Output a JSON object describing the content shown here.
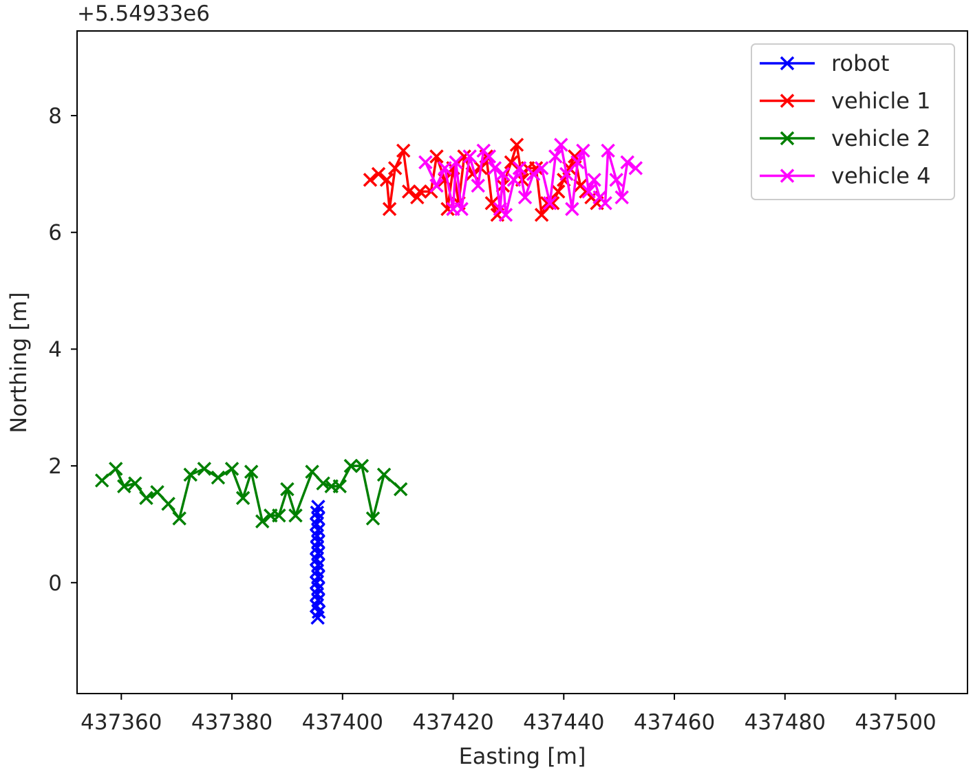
{
  "chart_data": {
    "type": "line",
    "xlabel": "Easting [m]",
    "ylabel": "Northing [m]",
    "y_offset_label": "+5.54933e6",
    "xlim": [
      437352,
      437513
    ],
    "ylim": [
      -1.9,
      9.45
    ],
    "xticks": [
      437360,
      437380,
      437400,
      437420,
      437440,
      437460,
      437480,
      437500
    ],
    "yticks": [
      0,
      2,
      4,
      6,
      8
    ],
    "grid": false,
    "legend_position": "top-right",
    "marker": "x",
    "series": [
      {
        "name": "robot",
        "color": "#0000ff",
        "points": [
          [
            395.5,
            -0.6
          ],
          [
            395.7,
            -0.5
          ],
          [
            395.3,
            -0.4
          ],
          [
            395.6,
            -0.3
          ],
          [
            395.4,
            -0.2
          ],
          [
            395.6,
            -0.1
          ],
          [
            395.3,
            0.0
          ],
          [
            395.6,
            0.1
          ],
          [
            395.4,
            0.2
          ],
          [
            395.6,
            0.3
          ],
          [
            395.3,
            0.4
          ],
          [
            395.6,
            0.5
          ],
          [
            395.4,
            0.6
          ],
          [
            395.6,
            0.7
          ],
          [
            395.4,
            0.8
          ],
          [
            395.6,
            0.9
          ],
          [
            395.3,
            1.0
          ],
          [
            395.6,
            1.1
          ],
          [
            395.4,
            1.2
          ],
          [
            395.6,
            1.3
          ]
        ]
      },
      {
        "name": "vehicle 1",
        "color": "#ff0000",
        "points": [
          [
            405.0,
            6.9
          ],
          [
            406.5,
            7.0
          ],
          [
            408.0,
            6.9
          ],
          [
            408.5,
            6.4
          ],
          [
            409.5,
            7.1
          ],
          [
            411.0,
            7.4
          ],
          [
            412.0,
            6.7
          ],
          [
            413.5,
            6.6
          ],
          [
            414.0,
            6.7
          ],
          [
            416.0,
            6.7
          ],
          [
            417.0,
            7.3
          ],
          [
            418.5,
            6.9
          ],
          [
            419.0,
            6.4
          ],
          [
            420.0,
            7.1
          ],
          [
            421.0,
            6.5
          ],
          [
            422.0,
            7.3
          ],
          [
            423.5,
            7.0
          ],
          [
            425.0,
            7.1
          ],
          [
            426.0,
            7.3
          ],
          [
            427.0,
            6.5
          ],
          [
            428.0,
            6.3
          ],
          [
            429.0,
            6.8
          ],
          [
            430.5,
            7.2
          ],
          [
            431.5,
            7.5
          ],
          [
            432.5,
            6.9
          ],
          [
            433.5,
            7.1
          ],
          [
            435.0,
            7.1
          ],
          [
            436.0,
            6.3
          ],
          [
            437.0,
            6.5
          ],
          [
            438.0,
            6.5
          ],
          [
            439.0,
            6.7
          ],
          [
            440.0,
            6.9
          ],
          [
            441.0,
            7.1
          ],
          [
            442.0,
            7.3
          ],
          [
            443.0,
            6.8
          ],
          [
            444.0,
            6.7
          ],
          [
            445.0,
            6.6
          ],
          [
            446.0,
            6.5
          ]
        ]
      },
      {
        "name": "vehicle 2",
        "color": "#008000",
        "points": [
          [
            356.5,
            1.75
          ],
          [
            359.0,
            1.95
          ],
          [
            360.5,
            1.65
          ],
          [
            362.5,
            1.7
          ],
          [
            364.5,
            1.45
          ],
          [
            366.5,
            1.55
          ],
          [
            368.5,
            1.35
          ],
          [
            370.5,
            1.1
          ],
          [
            372.5,
            1.85
          ],
          [
            375.0,
            1.95
          ],
          [
            377.5,
            1.8
          ],
          [
            380.0,
            1.95
          ],
          [
            382.0,
            1.45
          ],
          [
            383.5,
            1.9
          ],
          [
            385.5,
            1.05
          ],
          [
            387.0,
            1.15
          ],
          [
            388.5,
            1.15
          ],
          [
            390.0,
            1.6
          ],
          [
            391.5,
            1.15
          ],
          [
            394.5,
            1.9
          ],
          [
            396.5,
            1.7
          ],
          [
            398.0,
            1.65
          ],
          [
            399.5,
            1.65
          ],
          [
            401.5,
            2.0
          ],
          [
            403.5,
            2.0
          ],
          [
            405.5,
            1.1
          ],
          [
            407.5,
            1.85
          ],
          [
            410.5,
            1.6
          ]
        ]
      },
      {
        "name": "vehicle 4",
        "color": "#ff00ff",
        "points": [
          [
            415.0,
            7.2
          ],
          [
            417.0,
            6.8
          ],
          [
            418.5,
            7.1
          ],
          [
            420.0,
            6.4
          ],
          [
            420.5,
            7.2
          ],
          [
            421.5,
            6.4
          ],
          [
            423.0,
            7.3
          ],
          [
            424.5,
            6.8
          ],
          [
            425.5,
            7.4
          ],
          [
            426.5,
            7.3
          ],
          [
            427.5,
            7.1
          ],
          [
            428.5,
            6.4
          ],
          [
            429.0,
            7.0
          ],
          [
            429.5,
            6.3
          ],
          [
            431.0,
            6.9
          ],
          [
            432.0,
            7.1
          ],
          [
            433.0,
            6.6
          ],
          [
            434.5,
            7.0
          ],
          [
            436.0,
            7.1
          ],
          [
            437.5,
            6.5
          ],
          [
            438.5,
            7.3
          ],
          [
            439.5,
            7.5
          ],
          [
            440.5,
            7.0
          ],
          [
            441.5,
            6.4
          ],
          [
            442.5,
            7.2
          ],
          [
            443.5,
            7.4
          ],
          [
            444.5,
            6.7
          ],
          [
            445.5,
            6.9
          ],
          [
            446.5,
            6.6
          ],
          [
            447.5,
            6.5
          ],
          [
            448.0,
            7.4
          ],
          [
            449.5,
            6.9
          ],
          [
            450.5,
            6.6
          ],
          [
            451.5,
            7.2
          ],
          [
            453.0,
            7.1
          ]
        ]
      }
    ]
  }
}
